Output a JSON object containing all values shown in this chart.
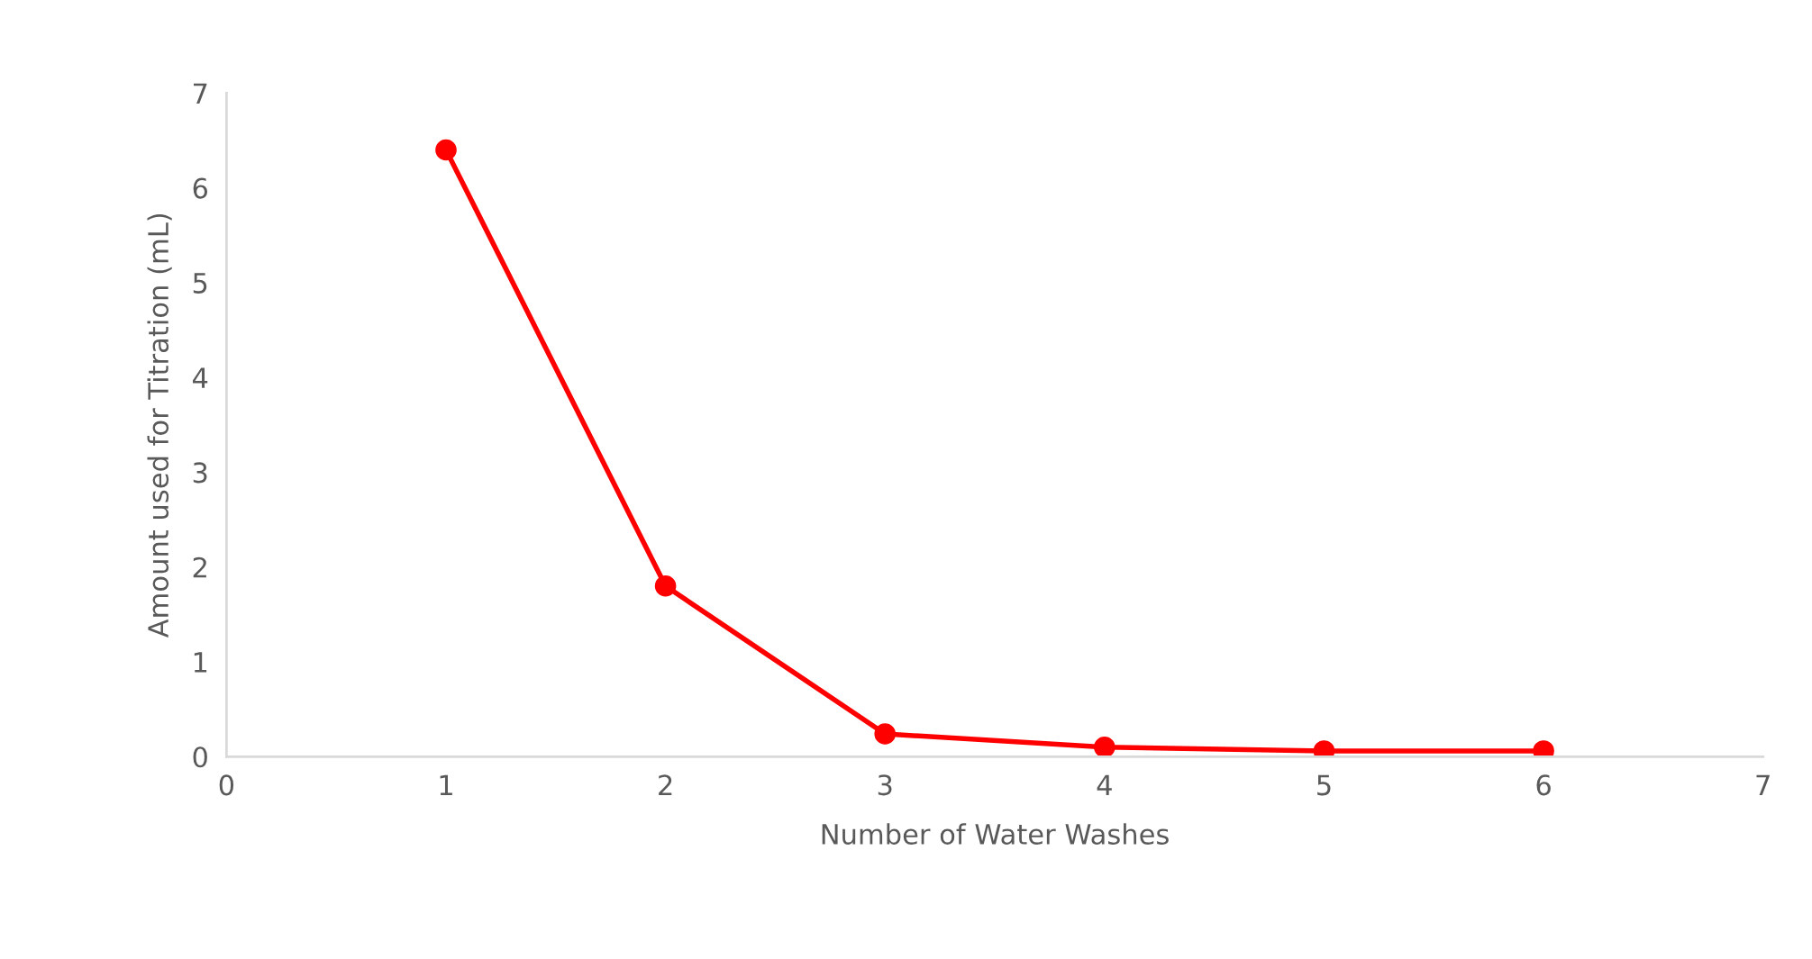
{
  "chart_data": {
    "type": "line",
    "xlabel": "Number of Water Washes",
    "ylabel": "Amount used for Titration (mL)",
    "x": [
      1,
      2,
      3,
      4,
      5,
      6
    ],
    "series": [
      {
        "color": "#ff0000",
        "values": [
          6.4,
          1.8,
          0.24,
          0.1,
          0.06,
          0.06
        ]
      }
    ],
    "xlim": [
      0,
      7
    ],
    "xticks": [
      0,
      1,
      2,
      3,
      4,
      5,
      6,
      7
    ],
    "ylim": [
      0,
      7
    ],
    "yticks": [
      0,
      1,
      2,
      3,
      4,
      5,
      6,
      7
    ],
    "grid": false,
    "legend": false,
    "marker": "circle",
    "line_style": "solid"
  }
}
